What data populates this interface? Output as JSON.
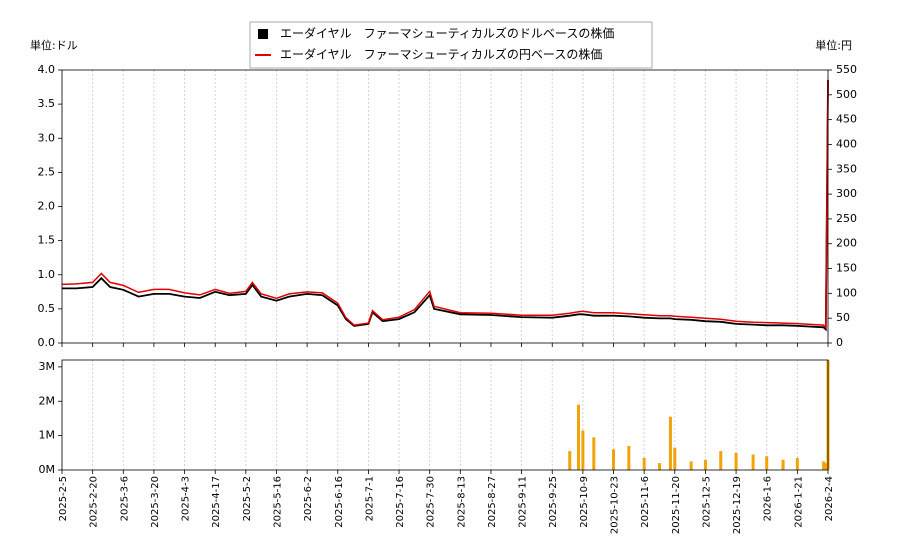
{
  "chart_data": [
    {
      "type": "line",
      "legend": "upper center",
      "ylabel": "単位:ドル",
      "y2label": "単位:円",
      "grid": true,
      "x": [
        "2025-2-5",
        "2025-2-12",
        "2025-2-20",
        "2025-2-24",
        "2025-2-28",
        "2025-3-6",
        "2025-3-13",
        "2025-3-20",
        "2025-3-27",
        "2025-4-3",
        "2025-4-10",
        "2025-4-17",
        "2025-4-24",
        "2025-5-2",
        "2025-5-5",
        "2025-5-9",
        "2025-5-16",
        "2025-5-23",
        "2025-6-2",
        "2025-6-9",
        "2025-6-16",
        "2025-6-20",
        "2025-6-24",
        "2025-7-1",
        "2025-7-3",
        "2025-7-8",
        "2025-7-16",
        "2025-7-23",
        "2025-7-30",
        "2025-8-1",
        "2025-8-13",
        "2025-8-27",
        "2025-9-11",
        "2025-9-25",
        "2025-10-3",
        "2025-10-7",
        "2025-10-9",
        "2025-10-14",
        "2025-10-23",
        "2025-10-30",
        "2025-11-6",
        "2025-11-13",
        "2025-11-18",
        "2025-11-20",
        "2025-11-28",
        "2025-12-5",
        "2025-12-12",
        "2025-12-19",
        "2025-12-29",
        "2026-1-6",
        "2026-1-14",
        "2026-1-21",
        "2026-2-2",
        "2026-2-3",
        "2026-2-4"
      ],
      "series": [
        {
          "name": "エーダイヤル　ファーマシューティカルズのドルベースの株価",
          "color": "#000000",
          "axis": "y",
          "values": [
            0.8,
            0.8,
            0.82,
            0.95,
            0.82,
            0.78,
            0.68,
            0.72,
            0.72,
            0.68,
            0.66,
            0.75,
            0.7,
            0.72,
            0.85,
            0.68,
            0.62,
            0.68,
            0.72,
            0.7,
            0.55,
            0.35,
            0.25,
            0.28,
            0.45,
            0.32,
            0.35,
            0.45,
            0.7,
            0.5,
            0.42,
            0.41,
            0.38,
            0.37,
            0.4,
            0.42,
            0.42,
            0.4,
            0.4,
            0.39,
            0.37,
            0.36,
            0.36,
            0.35,
            0.34,
            0.32,
            0.31,
            0.28,
            0.27,
            0.26,
            0.26,
            0.25,
            0.23,
            0.2,
            3.85
          ]
        },
        {
          "name": "エーダイヤル　ファーマシューティカルズの円ベースの株価",
          "color": "#e00000",
          "axis": "y2",
          "values": [
            118,
            119,
            122,
            140,
            122,
            116,
            102,
            108,
            108,
            101,
            97,
            108,
            100,
            104,
            122,
            99,
            90,
            99,
            103,
            101,
            80,
            51,
            36,
            40,
            65,
            47,
            52,
            67,
            104,
            74,
            61,
            60,
            56,
            56,
            60,
            63,
            64,
            61,
            61,
            59,
            57,
            55,
            55,
            54,
            52,
            50,
            48,
            44,
            42,
            41,
            40,
            39,
            36,
            31,
            530
          ]
        }
      ],
      "ylim": [
        0,
        4
      ],
      "yticks": [
        {
          "value": 0,
          "label": "0.0"
        },
        0.5,
        {
          "value": 1,
          "label": "1.0"
        },
        1.5,
        {
          "value": 2,
          "label": "2.0"
        },
        2.5,
        {
          "value": 3,
          "label": "3.0"
        },
        3.5,
        {
          "value": 4,
          "label": "4.0"
        }
      ],
      "y2lim": [
        0,
        550
      ],
      "y2ticks": [
        0,
        50,
        100,
        150,
        200,
        250,
        300,
        350,
        400,
        450,
        500,
        550
      ],
      "xticks": [
        "2025-2-5",
        "2025-2-20",
        "2025-3-6",
        "2025-3-20",
        "2025-4-3",
        "2025-4-17",
        "2025-5-2",
        "2025-5-16",
        "2025-6-2",
        "2025-6-16",
        "2025-7-1",
        "2025-7-16",
        "2025-7-30",
        "2025-8-13",
        "2025-8-27",
        "2025-9-11",
        "2025-9-25",
        "2025-10-9",
        "2025-10-23",
        "2025-11-6",
        "2025-11-20",
        "2025-12-5",
        "2025-12-19",
        "2026-1-6",
        "2026-1-21",
        "2026-2-4"
      ]
    },
    {
      "type": "bar",
      "grid": true,
      "color": "#f0a30a",
      "x": [
        "2025-2-5",
        "2025-2-12",
        "2025-2-20",
        "2025-2-24",
        "2025-2-28",
        "2025-3-6",
        "2025-3-13",
        "2025-3-20",
        "2025-3-27",
        "2025-4-3",
        "2025-4-10",
        "2025-4-17",
        "2025-4-24",
        "2025-5-2",
        "2025-5-5",
        "2025-5-9",
        "2025-5-16",
        "2025-5-23",
        "2025-6-2",
        "2025-6-9",
        "2025-6-16",
        "2025-6-20",
        "2025-6-24",
        "2025-7-1",
        "2025-7-3",
        "2025-7-8",
        "2025-7-16",
        "2025-7-23",
        "2025-7-30",
        "2025-8-1",
        "2025-8-13",
        "2025-8-27",
        "2025-9-11",
        "2025-9-25",
        "2025-10-3",
        "2025-10-7",
        "2025-10-9",
        "2025-10-14",
        "2025-10-23",
        "2025-10-30",
        "2025-11-6",
        "2025-11-13",
        "2025-11-18",
        "2025-11-20",
        "2025-11-28",
        "2025-12-5",
        "2025-12-12",
        "2025-12-19",
        "2025-12-29",
        "2026-1-6",
        "2026-1-14",
        "2026-1-21",
        "2026-2-2",
        "2026-2-3",
        "2026-2-4"
      ],
      "values": [
        0,
        0,
        0,
        0,
        0,
        0,
        0,
        0,
        0,
        0,
        0,
        0,
        0,
        0,
        0,
        0,
        0,
        0,
        0,
        0,
        0,
        0,
        0,
        0,
        0,
        0,
        0,
        0,
        0,
        0,
        0,
        0,
        0,
        0,
        550000,
        1900000,
        1150000,
        950000,
        600000,
        700000,
        350000,
        200000,
        1550000,
        650000,
        250000,
        300000,
        550000,
        500000,
        450000,
        400000,
        300000,
        350000,
        250000,
        200000,
        3200000
      ],
      "ylim": [
        0,
        3200000
      ],
      "yticks": [
        {
          "value": 0,
          "label": "0M"
        },
        {
          "value": 1000000,
          "label": "1M"
        },
        {
          "value": 2000000,
          "label": "2M"
        },
        {
          "value": 3000000,
          "label": "3M"
        }
      ],
      "xticks": [
        "2025-2-5",
        "2025-2-20",
        "2025-3-6",
        "2025-3-20",
        "2025-4-3",
        "2025-4-17",
        "2025-5-2",
        "2025-5-16",
        "2025-6-2",
        "2025-6-16",
        "2025-7-1",
        "2025-7-16",
        "2025-7-30",
        "2025-8-13",
        "2025-8-27",
        "2025-9-11",
        "2025-9-25",
        "2025-10-9",
        "2025-10-23",
        "2025-11-6",
        "2025-11-20",
        "2025-12-5",
        "2025-12-19",
        "2026-1-6",
        "2026-1-21",
        "2026-2-4"
      ]
    }
  ]
}
